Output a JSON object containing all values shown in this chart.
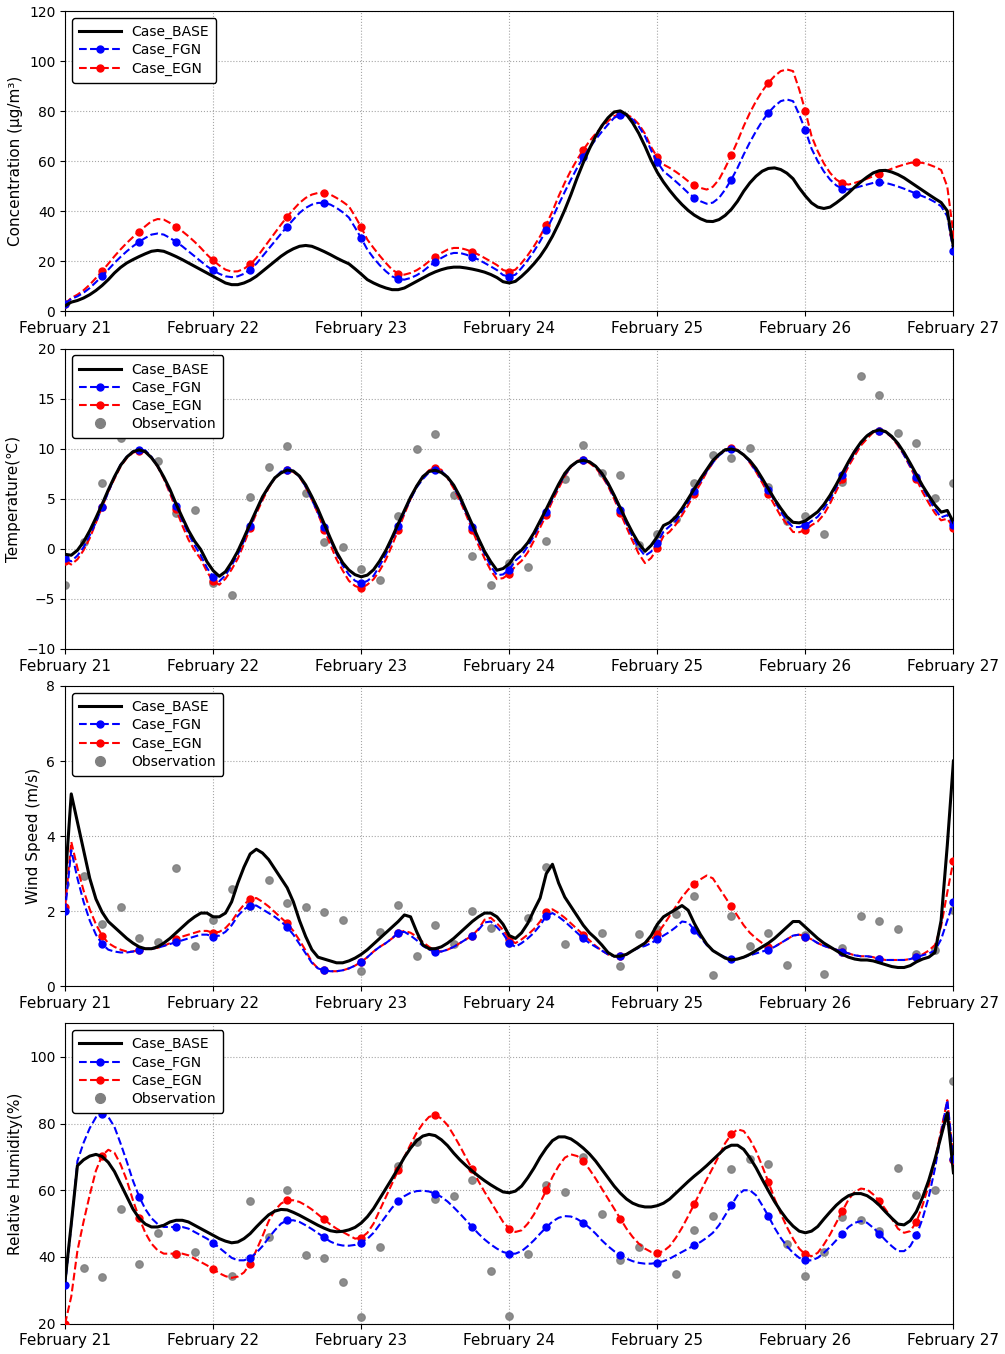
{
  "x_tick_labels": [
    "February 21",
    "February 22",
    "February 23",
    "February 24",
    "February 25",
    "February 26",
    "February 27"
  ],
  "panels": [
    {
      "ylabel": "Concentration (μg/m³)",
      "ylim": [
        0,
        120
      ],
      "yticks": [
        0,
        20,
        40,
        60,
        80,
        100,
        120
      ],
      "has_obs": false
    },
    {
      "ylabel": "Temperature(℃)",
      "ylim": [
        -10,
        20
      ],
      "yticks": [
        -10,
        -5,
        0,
        5,
        10,
        15,
        20
      ],
      "has_obs": true
    },
    {
      "ylabel": "Wind Speed (m/s)",
      "ylim": [
        0,
        8
      ],
      "yticks": [
        0,
        2,
        4,
        6,
        8
      ],
      "has_obs": true
    },
    {
      "ylabel": "Relative Humidity(%)",
      "ylim": [
        20,
        110
      ],
      "yticks": [
        20,
        40,
        60,
        80,
        100
      ],
      "has_obs": true
    }
  ],
  "colors": {
    "base": "#000000",
    "fgn": "#0000FF",
    "egn": "#FF0000",
    "obs": "#808080"
  }
}
